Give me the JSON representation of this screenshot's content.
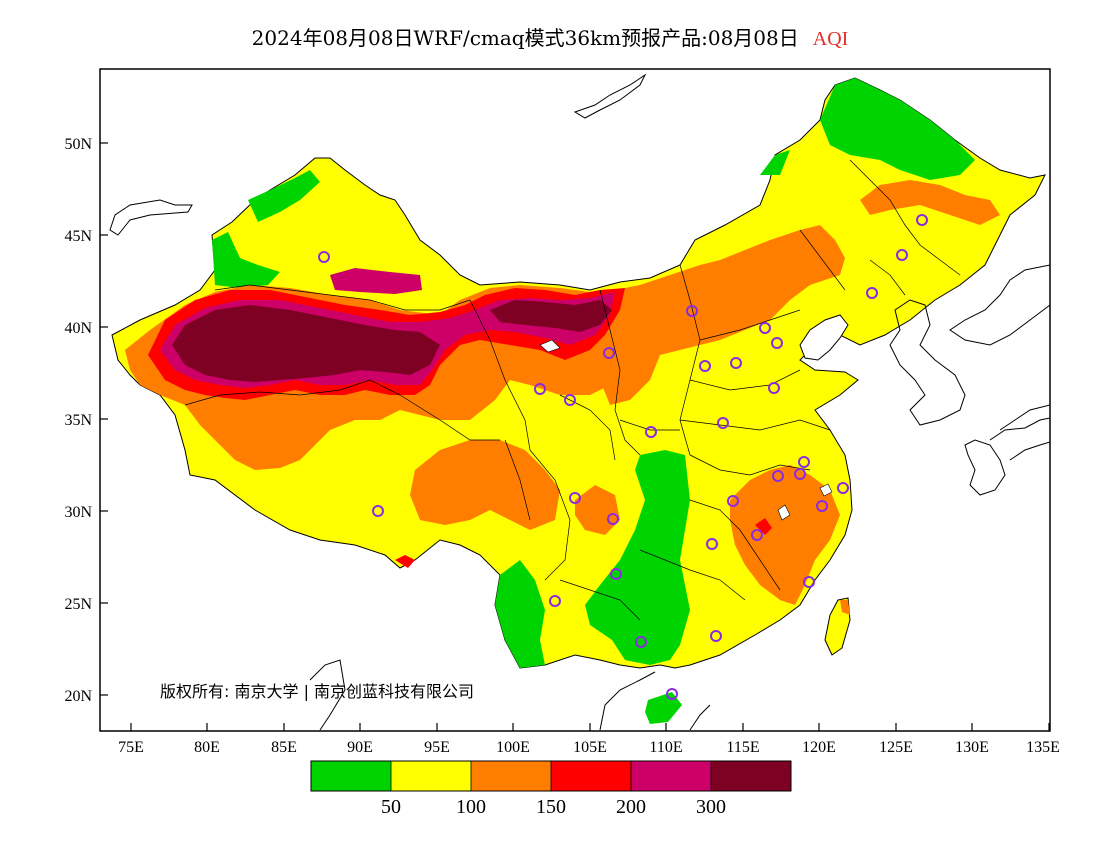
{
  "title": {
    "main": "2024年08月08日WRF/cmaq模式36km预报产品:08月08日",
    "variable": "AQI",
    "variable_color": "#e0302a"
  },
  "copyright": "版权所有: 南京大学 | 南京创蓝科技有限公司",
  "axes": {
    "x_ticks": [
      "75E",
      "80E",
      "85E",
      "90E",
      "95E",
      "100E",
      "105E",
      "110E",
      "115E",
      "120E",
      "125E",
      "130E",
      "135E"
    ],
    "y_ticks": [
      "50N",
      "45N",
      "40N",
      "35N",
      "30N",
      "25N",
      "20N"
    ]
  },
  "legend": {
    "colors": [
      "#00d400",
      "#ffff00",
      "#ff7e00",
      "#ff0000",
      "#cc0066",
      "#7e0023"
    ],
    "labels": [
      "50",
      "100",
      "150",
      "200",
      "300"
    ]
  },
  "colors": {
    "good": "#00d400",
    "moderate": "#ffff00",
    "sensitive": "#ff7e00",
    "unhealthy": "#ff0000",
    "very_unhealthy": "#cc0066",
    "hazardous": "#7e0023",
    "station_marker": "#8a2be2"
  }
}
